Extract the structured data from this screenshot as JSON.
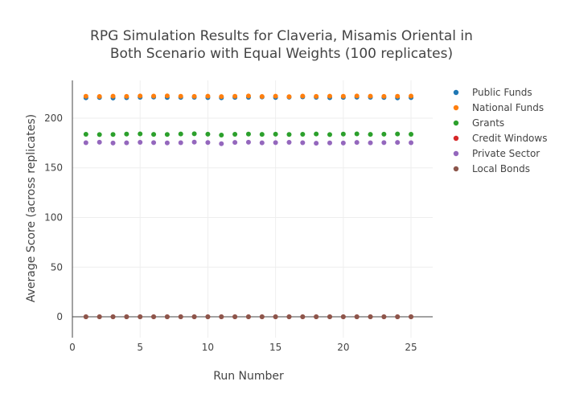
{
  "chart_data": {
    "type": "scatter",
    "title_line1": "RPG Simulation Results for Claveria, Misamis Oriental in",
    "title_line2": "Both Scenario with Equal Weights (100 replicates)",
    "xlabel": "Run Number",
    "ylabel": "Average Score (across replicates)",
    "xlim": [
      0,
      26.6
    ],
    "ylim": [
      -21,
      238
    ],
    "x_ticks": [
      0,
      5,
      10,
      15,
      20,
      25
    ],
    "y_ticks": [
      0,
      50,
      100,
      150,
      200
    ],
    "grid": true,
    "legend_position": "right",
    "x": [
      1,
      2,
      3,
      4,
      5,
      6,
      7,
      8,
      9,
      10,
      11,
      12,
      13,
      14,
      15,
      16,
      17,
      18,
      19,
      20,
      21,
      22,
      23,
      24,
      25
    ],
    "series": [
      {
        "name": "Public Funds",
        "color": "#1f77b4",
        "values": [
          220.5,
          220.8,
          220.3,
          220.6,
          221.0,
          221.2,
          220.8,
          220.9,
          221.0,
          220.7,
          220.5,
          220.9,
          221.0,
          221.3,
          220.8,
          221.1,
          221.4,
          221.0,
          220.6,
          220.9,
          221.1,
          221.0,
          220.8,
          220.4,
          220.7
        ]
      },
      {
        "name": "National Funds",
        "color": "#ff7f0e",
        "values": [
          222.0,
          221.8,
          222.1,
          221.9,
          222.3,
          222.2,
          222.4,
          222.0,
          221.9,
          222.1,
          221.7,
          222.0,
          222.3,
          221.8,
          222.1,
          221.6,
          222.2,
          221.9,
          222.1,
          222.0,
          222.3,
          222.1,
          221.9,
          222.0,
          222.2
        ]
      },
      {
        "name": "Grants",
        "color": "#2ca02c",
        "values": [
          183.8,
          183.5,
          183.6,
          184.0,
          184.2,
          183.7,
          183.6,
          184.1,
          184.3,
          183.9,
          183.0,
          183.8,
          184.0,
          183.7,
          183.9,
          183.6,
          183.8,
          184.1,
          183.5,
          184.0,
          184.2,
          183.7,
          183.9,
          184.1,
          183.8
        ]
      },
      {
        "name": "Credit Windows",
        "color": "#d62728",
        "values": [
          0,
          0,
          0,
          0,
          0,
          0,
          0,
          0,
          0,
          0,
          0,
          0,
          0,
          0,
          0,
          0,
          0,
          0,
          0,
          0,
          0,
          0,
          0,
          0,
          0
        ]
      },
      {
        "name": "Private Sector",
        "color": "#9467bd",
        "values": [
          175.3,
          175.8,
          175.0,
          175.2,
          175.7,
          175.4,
          175.1,
          175.3,
          175.9,
          175.5,
          174.3,
          175.6,
          175.8,
          175.2,
          175.4,
          175.7,
          175.3,
          174.8,
          175.1,
          175.0,
          175.6,
          175.2,
          175.4,
          175.6,
          175.3
        ]
      },
      {
        "name": "Local Bonds",
        "color": "#8c564b",
        "values": [
          0,
          0,
          0,
          0,
          0,
          0,
          0,
          0,
          0,
          0,
          0,
          0,
          0,
          0,
          0,
          0,
          0,
          0,
          0,
          0,
          0,
          0,
          0,
          0,
          0
        ]
      }
    ]
  }
}
